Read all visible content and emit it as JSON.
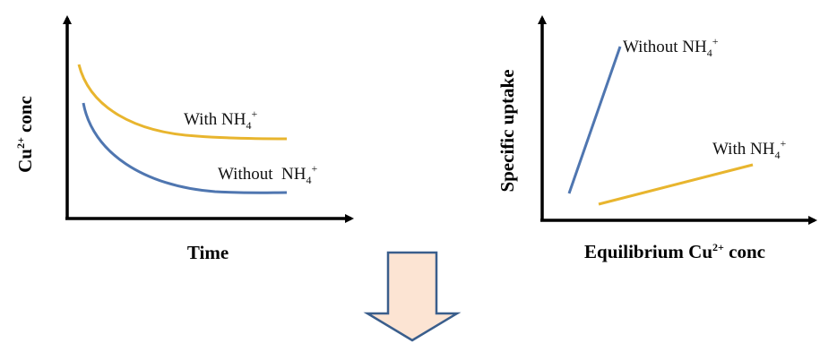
{
  "colors": {
    "with_nh4": "#E8B52E",
    "without_nh4": "#4F76B0",
    "axis": "#000000",
    "arrow_fill": "#FCE4D3",
    "arrow_stroke": "#3A5E8C"
  },
  "left_panel": {
    "ylabel": {
      "main": "Cu",
      "sup": "2+",
      "rest": " conc"
    },
    "xlabel": "Time",
    "with_label": {
      "text": "With NH",
      "sub": "4",
      "sup": "+"
    },
    "without_label": {
      "text": "Without  NH",
      "sub": "4",
      "sup": "+"
    }
  },
  "right_panel": {
    "ylabel": "Specific uptake",
    "xlabel": {
      "main": "Equilibrium Cu",
      "sup": "2+",
      "rest": " conc"
    },
    "with_label": {
      "text": "With NH",
      "sub": "4",
      "sup": "+"
    },
    "without_label": {
      "text": "Without NH",
      "sub": "4",
      "sup": "+"
    }
  },
  "down_arrow": {
    "icon": "down-arrow-icon"
  }
}
